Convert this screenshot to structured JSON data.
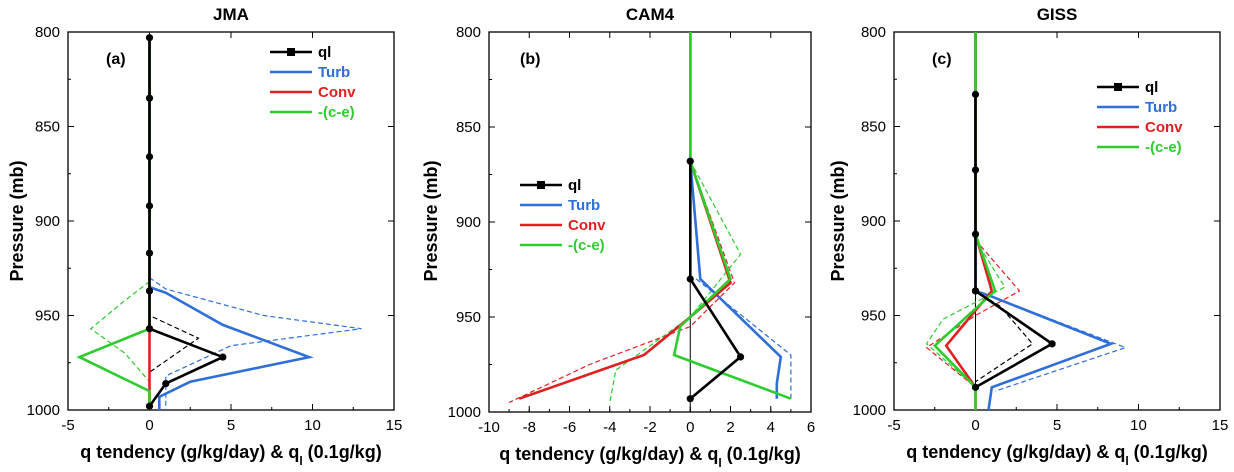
{
  "chart_data": [
    {
      "type": "line",
      "title": "JMA",
      "panel_label": "(a)",
      "xlabel": "q tendency (g/kg/day) & q",
      "xlabel_sub": "l",
      "xlabel_tail": " (0.1g/kg)",
      "ylabel": "Pressure (mb)",
      "xlim": [
        -5,
        15
      ],
      "ylim": [
        1000,
        800
      ],
      "y_inverted": true,
      "xticks": [
        -5,
        0,
        5,
        10,
        15
      ],
      "yticks": [
        800,
        850,
        900,
        950,
        1000
      ],
      "legend_position": "top-right",
      "series": [
        {
          "name": "ql",
          "color": "#000000",
          "marker": "circle",
          "x": [
            0,
            0,
            0,
            0,
            0,
            0,
            0,
            4.5,
            1,
            0
          ],
          "y": [
            803,
            835,
            866,
            892,
            917,
            937,
            957,
            972,
            986,
            998
          ]
        },
        {
          "name": "Turb",
          "color": "#2f6fd8",
          "x": [
            0,
            0,
            0,
            0,
            0,
            0,
            1,
            4.5,
            9.8,
            2.5,
            0.6,
            0.6
          ],
          "y": [
            803,
            835,
            866,
            892,
            917,
            935,
            938,
            955,
            972,
            985,
            993,
            1000
          ]
        },
        {
          "name": "Conv",
          "color": "#e02020",
          "x": [
            0,
            0,
            0,
            0,
            0,
            0,
            0
          ],
          "y": [
            803,
            835,
            866,
            892,
            917,
            937,
            1000
          ]
        },
        {
          "name": "-(c-e)",
          "color": "#2ecc2e",
          "x": [
            0,
            0,
            0,
            0,
            0,
            0,
            -4.3,
            0,
            0
          ],
          "y": [
            803,
            835,
            866,
            892,
            917,
            957,
            972,
            990,
            1000
          ]
        }
      ],
      "dashed": [
        {
          "color": "#000000",
          "x": [
            0,
            0,
            3,
            0,
            0
          ],
          "y": [
            935,
            950,
            962,
            980,
            1000
          ]
        },
        {
          "color": "#2f6fd8",
          "x": [
            0,
            1,
            7,
            13,
            5,
            1,
            1
          ],
          "y": [
            930,
            936,
            950,
            957,
            966,
            982,
            1000
          ]
        },
        {
          "color": "#2ecc2e",
          "x": [
            0,
            -1.5,
            -3.6,
            -1.5,
            0
          ],
          "y": [
            932,
            942,
            957,
            970,
            985
          ]
        }
      ]
    },
    {
      "type": "line",
      "title": "CAM4",
      "panel_label": "(b)",
      "xlabel": "q tendency (g/kg/day) & q",
      "xlabel_sub": "l",
      "xlabel_tail": " (0.1g/kg)",
      "ylabel": "Pressure (mb)",
      "xlim": [
        -10,
        6
      ],
      "ylim": [
        1000,
        800
      ],
      "y_inverted": true,
      "xticks": [
        -10,
        -8,
        -6,
        -4,
        -2,
        0,
        2,
        4,
        6
      ],
      "yticks": [
        800,
        850,
        900,
        950,
        1000
      ],
      "legend_position": "center-left",
      "series": [
        {
          "name": "ql",
          "color": "#000000",
          "marker": "circle",
          "x": [
            0,
            0,
            2.5,
            0
          ],
          "y": [
            868,
            930,
            971,
            993
          ]
        },
        {
          "name": "Turb",
          "color": "#2f6fd8",
          "x": [
            0,
            0,
            0.5,
            4.5,
            4.3,
            4.3
          ],
          "y": [
            800,
            868,
            930,
            971,
            985,
            993
          ]
        },
        {
          "name": "Conv",
          "color": "#e02020",
          "x": [
            0,
            0,
            2,
            0,
            -2.3,
            -8.5
          ],
          "y": [
            800,
            868,
            932,
            950,
            970,
            993
          ]
        },
        {
          "name": "-(c-e)",
          "color": "#2ecc2e",
          "x": [
            0,
            0,
            2,
            -0.5,
            -0.8,
            5
          ],
          "y": [
            800,
            868,
            930,
            955,
            970,
            993
          ]
        }
      ],
      "dashed": [
        {
          "color": "#e02020",
          "x": [
            0,
            2.2,
            0,
            -5,
            -9
          ],
          "y": [
            868,
            932,
            955,
            975,
            995
          ]
        },
        {
          "color": "#2ecc2e",
          "x": [
            0,
            2.5,
            0,
            -3.7,
            -4
          ],
          "y": [
            868,
            917,
            950,
            978,
            995
          ]
        },
        {
          "color": "#2f6fd8",
          "x": [
            0.3,
            5,
            5
          ],
          "y": [
            930,
            970,
            993
          ]
        }
      ]
    },
    {
      "type": "line",
      "title": "GISS",
      "panel_label": "(c)",
      "xlabel": "q tendency (g/kg/day) & q",
      "xlabel_sub": "l",
      "xlabel_tail": " (0.1g/kg)",
      "ylabel": "Pressure (mb)",
      "xlim": [
        -5,
        15
      ],
      "ylim": [
        1000,
        800
      ],
      "y_inverted": true,
      "xticks": [
        -5,
        0,
        5,
        10,
        15
      ],
      "yticks": [
        800,
        850,
        900,
        950,
        1000
      ],
      "legend_position": "top-right",
      "series": [
        {
          "name": "ql",
          "color": "#000000",
          "marker": "circle",
          "x": [
            0,
            0,
            0,
            0,
            0,
            4.7,
            0
          ],
          "y": [
            833,
            873,
            907,
            937,
            937,
            965,
            988
          ]
        },
        {
          "name": "Turb",
          "color": "#2f6fd8",
          "x": [
            0,
            0,
            0,
            0,
            0,
            1,
            8.3,
            1,
            0.8
          ],
          "y": [
            800,
            833,
            873,
            907,
            937,
            940,
            965,
            988,
            1000
          ]
        },
        {
          "name": "Conv",
          "color": "#e02020",
          "x": [
            0,
            0,
            0,
            0,
            1,
            -1.8,
            0,
            0
          ],
          "y": [
            800,
            833,
            873,
            907,
            937,
            966,
            988,
            1000
          ]
        },
        {
          "name": "-(c-e)",
          "color": "#2ecc2e",
          "x": [
            0,
            0,
            0,
            0,
            1.2,
            -2.5,
            0,
            0
          ],
          "y": [
            800,
            833,
            873,
            907,
            937,
            966,
            988,
            1000
          ]
        }
      ],
      "dashed": [
        {
          "color": "#e02020",
          "x": [
            0,
            2.7,
            0,
            -3,
            0
          ],
          "y": [
            910,
            937,
            950,
            967,
            988
          ]
        },
        {
          "color": "#2ecc2e",
          "x": [
            0,
            1.8,
            -2,
            -3,
            0
          ],
          "y": [
            910,
            935,
            952,
            965,
            988
          ]
        },
        {
          "color": "#000000",
          "x": [
            0,
            1.5,
            3.5,
            0
          ],
          "y": [
            937,
            945,
            965,
            985
          ]
        },
        {
          "color": "#2f6fd8",
          "x": [
            1,
            9.2,
            1.2
          ],
          "y": [
            940,
            967,
            990
          ]
        }
      ]
    }
  ]
}
